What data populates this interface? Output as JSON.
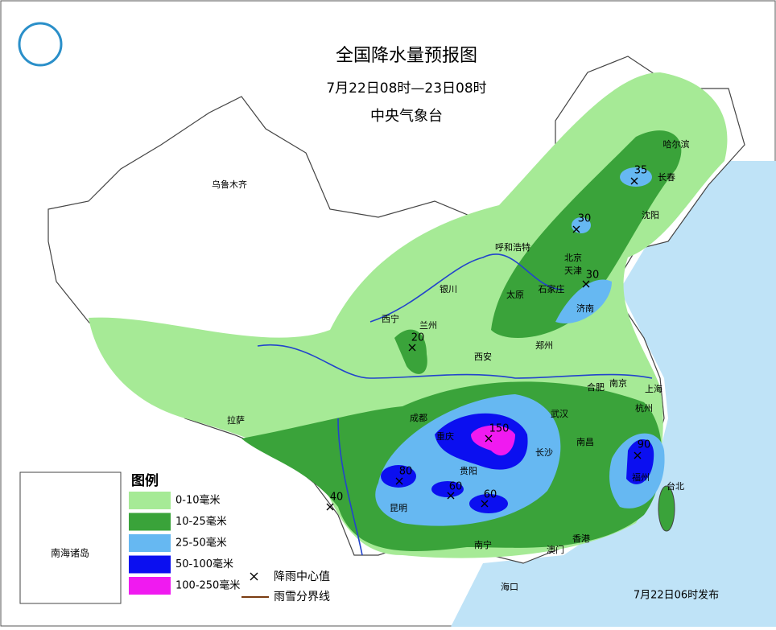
{
  "header": {
    "title": "全国降水量预报图",
    "subtitle": "7月22日08时—23日08时",
    "publisher": "中央气象台"
  },
  "cities": [
    "乌鲁木齐",
    "哈尔滨",
    "长春",
    "沈阳",
    "呼和浩特",
    "北京",
    "天津",
    "石家庄",
    "太原",
    "济南",
    "银川",
    "兰州",
    "西宁",
    "郑州",
    "西安",
    "合肥",
    "南京",
    "上海",
    "杭州",
    "武汉",
    "成都",
    "重庆",
    "长沙",
    "南昌",
    "贵阳",
    "昆明",
    "福州",
    "台北",
    "拉萨",
    "南宁",
    "香港",
    "澳门",
    "海口"
  ],
  "rain_centers": [
    {
      "value": 35
    },
    {
      "value": 30
    },
    {
      "value": 30
    },
    {
      "value": 20
    },
    {
      "value": 150
    },
    {
      "value": 80
    },
    {
      "value": 60
    },
    {
      "value": 60
    },
    {
      "value": 90
    },
    {
      "value": 40
    }
  ],
  "inset": {
    "label": "南海诸岛"
  },
  "legend": {
    "title": "图例",
    "items": [
      {
        "label": "0-10毫米",
        "color": "#a6ea96"
      },
      {
        "label": "10-25毫米",
        "color": "#3aa33a"
      },
      {
        "label": "25-50毫米",
        "color": "#66b8f2"
      },
      {
        "label": "50-100毫米",
        "color": "#0b0ff0"
      },
      {
        "label": "100-250毫米",
        "color": "#f01af0"
      }
    ],
    "notes": [
      "降雨中心值",
      "雨雪分界线"
    ]
  },
  "footer": "7月22日06时发布"
}
